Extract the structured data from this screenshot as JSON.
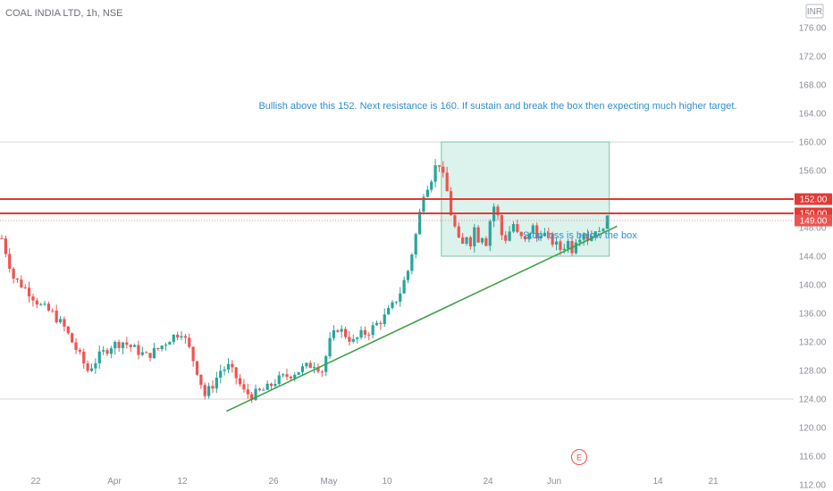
{
  "header": {
    "title": "COAL INDIA LTD, 1h, NSE"
  },
  "price_axis": {
    "currency": "INR",
    "ticks": [
      "176.00",
      "172.00",
      "168.00",
      "164.00",
      "160.00",
      "156.00",
      "148.00",
      "144.00",
      "140.00",
      "136.00",
      "132.00",
      "128.00",
      "124.00",
      "120.00",
      "116.00",
      "112.00"
    ]
  },
  "time_axis": {
    "ticks": [
      "22",
      "Apr",
      "12",
      "26",
      "May",
      "10",
      "24",
      "Jun",
      "14",
      "21"
    ]
  },
  "events": {
    "earnings_badge": "E"
  },
  "colors": {
    "up": "#26a69a",
    "down": "#ef5350",
    "resistance": "#e53935",
    "trendline": "#43a047",
    "box_fill": "#d3efe7",
    "box_stroke": "#7cc6a0",
    "annotation": "#2f8fd1"
  },
  "chart_data": {
    "type": "candlestick",
    "title": "COAL INDIA LTD, 1h, NSE",
    "x_ticks": [
      "22",
      "Apr",
      "12",
      "26",
      "May",
      "10",
      "24",
      "Jun",
      "14",
      "21"
    ],
    "y_ticks": [
      176,
      172,
      168,
      164,
      160,
      156,
      148,
      144,
      140,
      136,
      132,
      128,
      124,
      120,
      116,
      112
    ],
    "ylim": [
      110.5,
      176.5
    ],
    "grid": false,
    "series": [
      {
        "name": "close_path",
        "points": [
          [
            0,
            146.5
          ],
          [
            3,
            141
          ],
          [
            7,
            139
          ],
          [
            10,
            137
          ],
          [
            13,
            136
          ],
          [
            16,
            134
          ],
          [
            19,
            131
          ],
          [
            22,
            128
          ],
          [
            25,
            130
          ],
          [
            28,
            131.5
          ],
          [
            31,
            132
          ],
          [
            34,
            131
          ],
          [
            37,
            130
          ],
          [
            40,
            131
          ],
          [
            43,
            132.5
          ],
          [
            46,
            133.5
          ],
          [
            48,
            131
          ],
          [
            50,
            128
          ],
          [
            52,
            124.5
          ],
          [
            54,
            126
          ],
          [
            56,
            128
          ],
          [
            58,
            128.5
          ],
          [
            60,
            127
          ],
          [
            62,
            125
          ],
          [
            64,
            124.5
          ],
          [
            66,
            125
          ],
          [
            68,
            125.5
          ],
          [
            70,
            126.5
          ],
          [
            72,
            127
          ],
          [
            74,
            127.5
          ],
          [
            76,
            128
          ],
          [
            78,
            128.5
          ],
          [
            80,
            129
          ],
          [
            82,
            128
          ],
          [
            84,
            132
          ],
          [
            86,
            134
          ],
          [
            88,
            133
          ],
          [
            90,
            132
          ],
          [
            92,
            133
          ],
          [
            94,
            133.5
          ],
          [
            96,
            134.5
          ],
          [
            98,
            135.5
          ],
          [
            100,
            137
          ],
          [
            102,
            139
          ],
          [
            104,
            142
          ],
          [
            106,
            147
          ],
          [
            108,
            153
          ],
          [
            110,
            155
          ],
          [
            111,
            156.5
          ],
          [
            112,
            157
          ],
          [
            113,
            155
          ],
          [
            114,
            153
          ],
          [
            115,
            150
          ],
          [
            116,
            148
          ],
          [
            117,
            146
          ],
          [
            118,
            145.5
          ],
          [
            119,
            147
          ],
          [
            120,
            146
          ],
          [
            121,
            148
          ],
          [
            122,
            146.5
          ],
          [
            123,
            147
          ],
          [
            124,
            146
          ],
          [
            125,
            149
          ],
          [
            126,
            151
          ],
          [
            127,
            149.5
          ],
          [
            128,
            147
          ],
          [
            129,
            146.5
          ],
          [
            130,
            147.5
          ],
          [
            131,
            148.5
          ],
          [
            132,
            147
          ],
          [
            133,
            146.5
          ],
          [
            134,
            146
          ],
          [
            135,
            147.5
          ],
          [
            136,
            148
          ],
          [
            137,
            146.5
          ],
          [
            138,
            147.5
          ],
          [
            139,
            147
          ],
          [
            140,
            146.5
          ],
          [
            141,
            146
          ],
          [
            142,
            145.5
          ],
          [
            143,
            145
          ],
          [
            144,
            145.5
          ],
          [
            145,
            146
          ],
          [
            146,
            145
          ],
          [
            147,
            146.5
          ],
          [
            148,
            147
          ],
          [
            149,
            147.5
          ],
          [
            150,
            146.5
          ],
          [
            151,
            147
          ],
          [
            152,
            148
          ],
          [
            153,
            147
          ],
          [
            154,
            148.5
          ],
          [
            155,
            149
          ]
        ]
      },
      {
        "name": "Bullish above this 152. Next resistance is 160. If sustain and break the box then expecting much higher target.",
        "type": "horizontal-level",
        "values": [
          152,
          150
        ]
      },
      {
        "name": "149.00",
        "type": "last-price",
        "values": [
          149
        ]
      }
    ],
    "annotations": {
      "resistance_text": "Bullish above this 152. Next resistance is 160. If sustain and break the box then expecting much higher target.",
      "stoploss_text": "Stop-loss is below the box",
      "horizontal_levels": [
        {
          "price": 152,
          "label": "152.00"
        },
        {
          "price": 150,
          "label": "150.00"
        }
      ],
      "last_price": {
        "price": 149,
        "label": "149.00"
      },
      "grey_levels": [
        160,
        124
      ],
      "box": {
        "x_start": 113,
        "x_end": 156,
        "price_low": 144,
        "price_high": 160
      },
      "trendline": {
        "x_start": 58,
        "price_start": 122.3,
        "x_end": 158,
        "price_end": 148.2
      }
    }
  }
}
